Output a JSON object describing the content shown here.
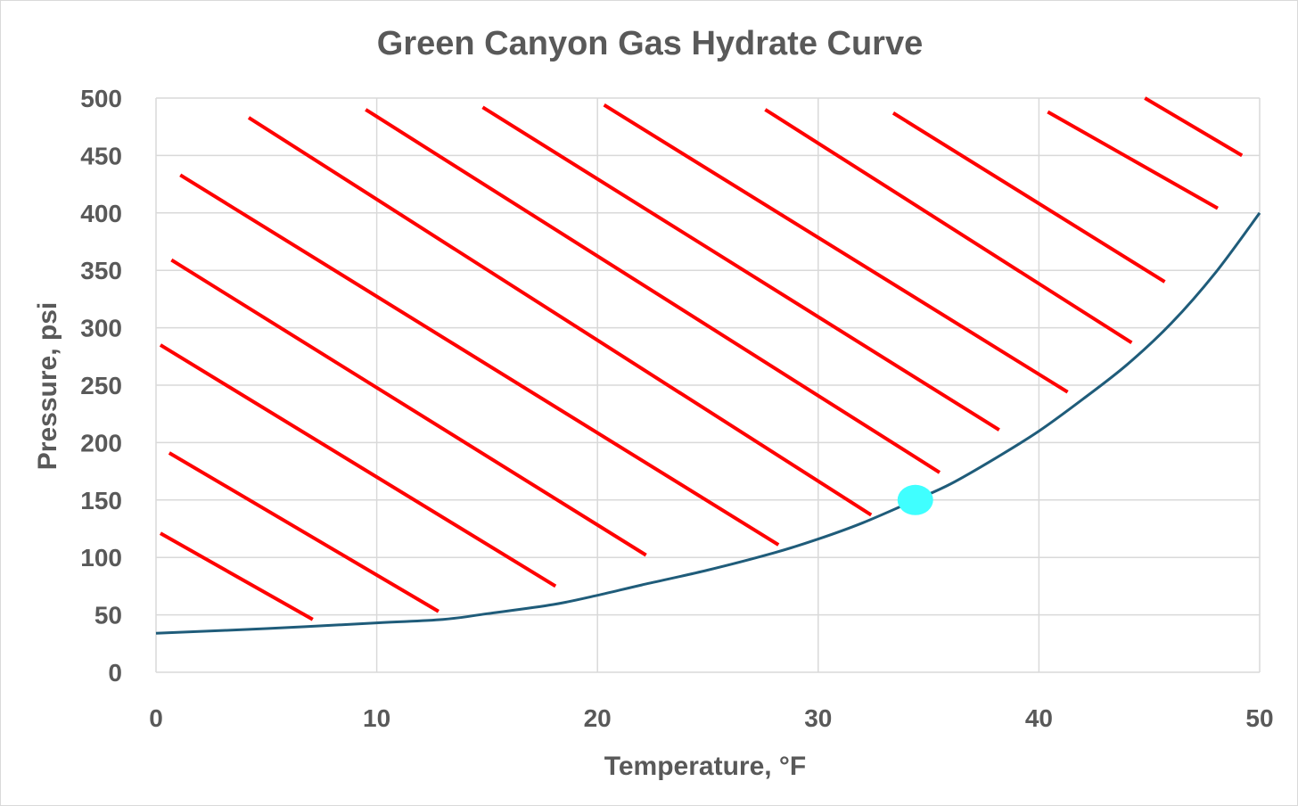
{
  "chart_data": {
    "type": "line",
    "title": "Green Canyon Gas Hydrate Curve",
    "xlabel": "Temperature, °F",
    "ylabel": "Pressure, psi",
    "xlim": [
      0,
      50
    ],
    "ylim": [
      0,
      500
    ],
    "xticks": [
      0,
      10,
      20,
      30,
      40,
      50
    ],
    "yticks": [
      0,
      50,
      100,
      150,
      200,
      250,
      300,
      350,
      400,
      450,
      500
    ],
    "grid": true,
    "series": [
      {
        "color": "#1f5c7a",
        "x": [
          0,
          5,
          10,
          13,
          15,
          18,
          20,
          22,
          25,
          28,
          30,
          32,
          34.4,
          36,
          38,
          40,
          42,
          44,
          46,
          48,
          50
        ],
        "y": [
          34,
          38,
          43,
          46,
          51,
          59,
          67,
          76,
          89,
          104,
          116,
          130,
          150,
          164,
          186,
          210,
          238,
          268,
          304,
          348,
          400
        ]
      }
    ],
    "marker": {
      "x": 34.4,
      "y": 150,
      "color": "#40ffff"
    },
    "hatch": {
      "color": "#ff0000",
      "lines": [
        {
          "x1": 0.2,
          "y1": 121,
          "x2": 7.1,
          "y2": 46
        },
        {
          "x1": 0.6,
          "y1": 191,
          "x2": 12.8,
          "y2": 53
        },
        {
          "x1": 0.2,
          "y1": 285,
          "x2": 18.1,
          "y2": 75
        },
        {
          "x1": 0.7,
          "y1": 359,
          "x2": 22.2,
          "y2": 102
        },
        {
          "x1": 1.1,
          "y1": 433,
          "x2": 28.2,
          "y2": 111
        },
        {
          "x1": 4.2,
          "y1": 483,
          "x2": 32.4,
          "y2": 137
        },
        {
          "x1": 9.5,
          "y1": 490,
          "x2": 35.5,
          "y2": 174
        },
        {
          "x1": 14.8,
          "y1": 492,
          "x2": 38.2,
          "y2": 211
        },
        {
          "x1": 20.3,
          "y1": 494,
          "x2": 41.3,
          "y2": 244
        },
        {
          "x1": 27.6,
          "y1": 490,
          "x2": 44.2,
          "y2": 287
        },
        {
          "x1": 33.4,
          "y1": 487,
          "x2": 45.7,
          "y2": 340
        },
        {
          "x1": 40.4,
          "y1": 488,
          "x2": 48.1,
          "y2": 404
        },
        {
          "x1": 44.8,
          "y1": 500,
          "x2": 49.2,
          "y2": 450
        }
      ]
    }
  }
}
